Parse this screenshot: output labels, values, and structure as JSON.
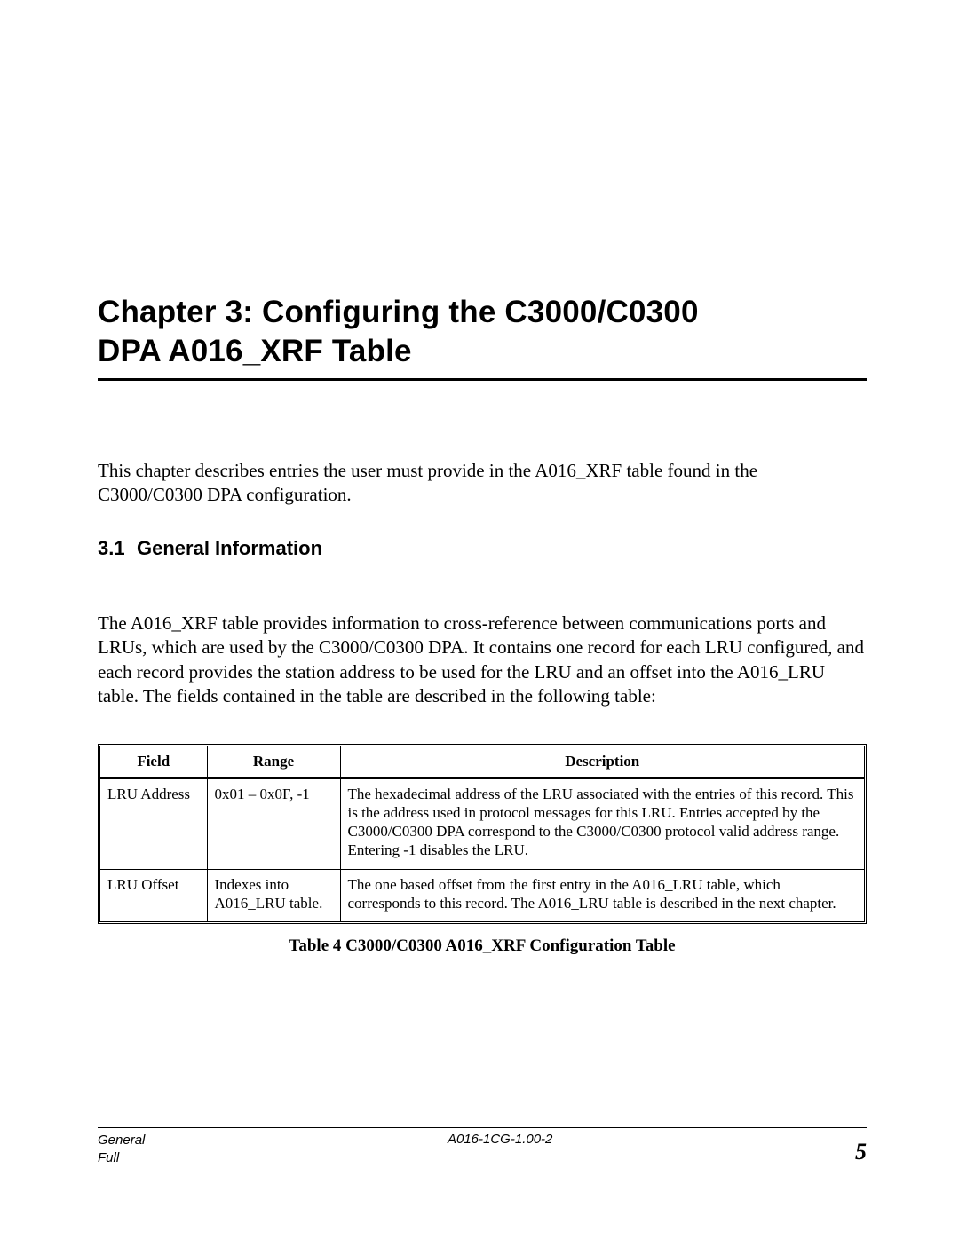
{
  "chapter": {
    "title_line1": "Chapter 3: Configuring the C3000/C0300",
    "title_line2": "DPA A016_XRF Table"
  },
  "intro": "This chapter describes entries the user must provide in the A016_XRF table found in the C3000/C0300 DPA configuration.",
  "section": {
    "number": "3.1",
    "title": "General Information",
    "body": "The A016_XRF table provides information to cross-reference between communications ports and LRUs, which are used by the C3000/C0300 DPA. It contains one record for each LRU configured, and each record provides the station address to be used for the LRU and an offset into the A016_LRU table. The fields contained in the table are described in the following table:"
  },
  "table": {
    "headers": {
      "field": "Field",
      "range": "Range",
      "description": "Description"
    },
    "rows": [
      {
        "field": "LRU Address",
        "range": "0x01 – 0x0F, -1",
        "description": "The hexadecimal address of the LRU associated with the entries of this record. This is the address used in protocol messages for this LRU. Entries accepted by the C3000/C0300 DPA correspond to the C3000/C0300 protocol valid address range. Entering -1 disables the LRU."
      },
      {
        "field": "LRU Offset",
        "range": "Indexes into A016_LRU table.",
        "description": "The one based offset from the first entry in the A016_LRU table, which corresponds to this record. The A016_LRU table is described in the next chapter."
      }
    ],
    "caption": "Table 4 C3000/C0300 A016_XRF Configuration Table"
  },
  "footer": {
    "left_line1": "General",
    "left_line2": "Full",
    "center": "A016-1CG-1.00-2",
    "page": "5"
  }
}
